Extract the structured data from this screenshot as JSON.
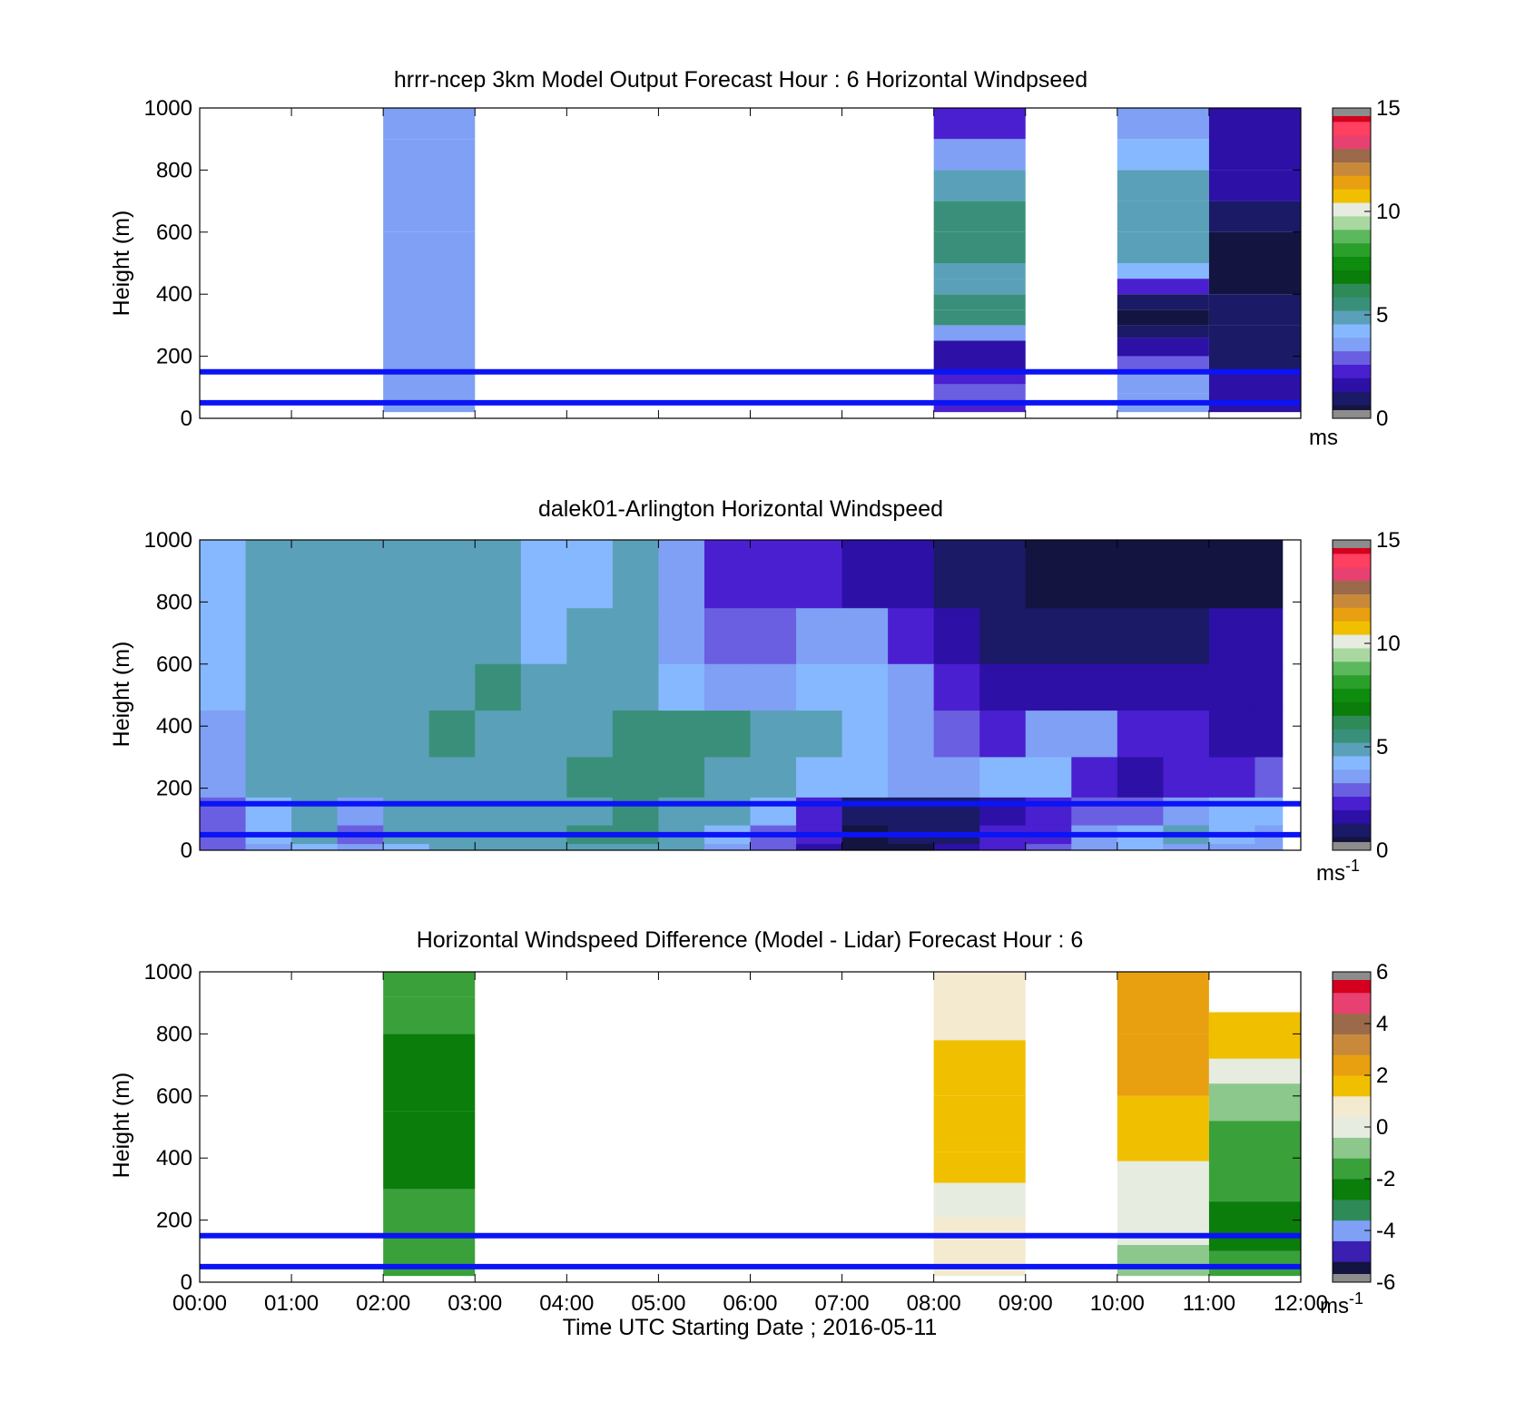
{
  "colors": {
    "background": "#ffffff",
    "reference_line": "#0a14f5",
    "missing": "#8c8c8c",
    "speed_scale": [
      "#141440",
      "#1a1a66",
      "#2d10a6",
      "#4a1fd0",
      "#6a5fe0",
      "#7fa0f5",
      "#86b8ff",
      "#5aa0b8",
      "#3a8f7a",
      "#2e8b57",
      "#0a7d0a",
      "#0d8c0d",
      "#2aa02a",
      "#5cb85c",
      "#a8d8a0",
      "#e6ece0",
      "#f0c000",
      "#e8a010",
      "#c88a3a",
      "#9a6a4a",
      "#e84070",
      "#ff4060",
      "#d4001e"
    ],
    "diff_scale": [
      "#141440",
      "#3a1fb0",
      "#7fa0f5",
      "#2e8b57",
      "#0a7d0a",
      "#3aa03a",
      "#8cc88c",
      "#e6ece0",
      "#f3ead0",
      "#f0c000",
      "#e8a010",
      "#c88a3a",
      "#9a6a4a",
      "#e84070",
      "#d4001e"
    ]
  },
  "xaxis": {
    "label": "Time UTC  Starting Date ; 2016-05-11",
    "ticks": [
      "00:00",
      "01:00",
      "02:00",
      "03:00",
      "04:00",
      "05:00",
      "06:00",
      "07:00",
      "08:00",
      "09:00",
      "10:00",
      "11:00",
      "12:00"
    ]
  },
  "chart_data": [
    {
      "type": "heatmap",
      "id": "model",
      "title": "hrrr-ncep 3km Model Output   Forecast Hour : 6 Horizontal Windpseed",
      "ylabel": "Height (m)",
      "ylim": [
        0,
        1000
      ],
      "yticks": [
        "0",
        "200",
        "400",
        "600",
        "800",
        "1000"
      ],
      "xlim_hours": [
        0,
        12
      ],
      "reference_lines_m": [
        50,
        150
      ],
      "colorbar": {
        "min": 0,
        "max": 15,
        "ticks": [
          "0",
          "5",
          "10",
          "15"
        ],
        "unit": "ms"
      },
      "columns": [
        {
          "start_hour": 2,
          "end_hour": 3,
          "layers": [
            {
              "bottom": 20,
              "top": 600,
              "value": 3.4
            },
            {
              "bottom": 600,
              "top": 900,
              "value": 3.9
            },
            {
              "bottom": 900,
              "top": 1000,
              "value": 3.5
            }
          ]
        },
        {
          "start_hour": 8,
          "end_hour": 9,
          "layers": [
            {
              "bottom": 20,
              "top": 45,
              "value": 2.5
            },
            {
              "bottom": 45,
              "top": 110,
              "value": 2.9
            },
            {
              "bottom": 110,
              "top": 150,
              "value": 2.2
            },
            {
              "bottom": 150,
              "top": 250,
              "value": 1.6
            },
            {
              "bottom": 250,
              "top": 300,
              "value": 3.7
            },
            {
              "bottom": 300,
              "top": 350,
              "value": 5.4
            },
            {
              "bottom": 350,
              "top": 400,
              "value": 5.5
            },
            {
              "bottom": 400,
              "top": 450,
              "value": 5.2
            },
            {
              "bottom": 450,
              "top": 500,
              "value": 5.0
            },
            {
              "bottom": 500,
              "top": 600,
              "value": 5.3
            },
            {
              "bottom": 600,
              "top": 700,
              "value": 5.6
            },
            {
              "bottom": 700,
              "top": 800,
              "value": 4.6
            },
            {
              "bottom": 800,
              "top": 900,
              "value": 3.9
            },
            {
              "bottom": 900,
              "top": 1000,
              "value": 2.5
            }
          ]
        },
        {
          "start_hour": 10,
          "end_hour": 11,
          "layers": [
            {
              "bottom": 20,
              "top": 45,
              "value": 3.4
            },
            {
              "bottom": 45,
              "top": 80,
              "value": 3.9
            },
            {
              "bottom": 80,
              "top": 150,
              "value": 3.8
            },
            {
              "bottom": 150,
              "top": 200,
              "value": 3.2
            },
            {
              "bottom": 200,
              "top": 260,
              "value": 1.6
            },
            {
              "bottom": 260,
              "top": 300,
              "value": 0.7
            },
            {
              "bottom": 300,
              "top": 350,
              "value": 0.4
            },
            {
              "bottom": 350,
              "top": 400,
              "value": 1.2
            },
            {
              "bottom": 400,
              "top": 450,
              "value": 2.4
            },
            {
              "bottom": 450,
              "top": 500,
              "value": 4.3
            },
            {
              "bottom": 500,
              "top": 600,
              "value": 4.6
            },
            {
              "bottom": 600,
              "top": 700,
              "value": 5.0
            },
            {
              "bottom": 700,
              "top": 800,
              "value": 4.6
            },
            {
              "bottom": 800,
              "top": 900,
              "value": 4.3
            },
            {
              "bottom": 900,
              "top": 1000,
              "value": 3.9
            }
          ]
        },
        {
          "start_hour": 11,
          "end_hour": 12,
          "layers": [
            {
              "bottom": 20,
              "top": 150,
              "value": 1.6
            },
            {
              "bottom": 150,
              "top": 300,
              "value": 0.9
            },
            {
              "bottom": 300,
              "top": 400,
              "value": 0.7
            },
            {
              "bottom": 400,
              "top": 600,
              "value": 0.3
            },
            {
              "bottom": 600,
              "top": 700,
              "value": 1.1
            },
            {
              "bottom": 700,
              "top": 800,
              "value": 1.5
            },
            {
              "bottom": 800,
              "top": 1000,
              "value": 1.8
            }
          ]
        }
      ]
    },
    {
      "type": "heatmap",
      "id": "lidar",
      "title": "dalek01-Arlington  Horizontal Windspeed",
      "ylabel": "Height (m)",
      "ylim": [
        0,
        1000
      ],
      "yticks": [
        "0",
        "200",
        "400",
        "600",
        "800",
        "1000"
      ],
      "xlim_hours": [
        0,
        12
      ],
      "reference_lines_m": [
        50,
        150
      ],
      "colorbar": {
        "min": 0,
        "max": 15,
        "ticks": [
          "0",
          "5",
          "10",
          "15"
        ],
        "unit": "ms",
        "unit_exponent": "-1"
      },
      "data_extent_hours": [
        0,
        11.8
      ],
      "height_levels_m": [
        1000,
        780,
        600,
        450,
        300,
        170,
        80,
        20
      ],
      "hour_bins": [
        0,
        0.5,
        1,
        1.5,
        2,
        2.5,
        3,
        3.5,
        4,
        4.5,
        5,
        5.5,
        6,
        6.5,
        7,
        7.5,
        8,
        8.5,
        9,
        9.5,
        10,
        10.5,
        11,
        11.5
      ],
      "speed_profiles": [
        [
          4.5,
          5.0,
          5.0,
          5.0,
          5.0,
          5.0,
          5.2,
          4.5,
          4.0,
          4.6,
          3.6,
          2.6,
          2.6,
          2.3,
          1.8,
          1.6,
          1.1,
          0.8,
          0.6,
          0.5,
          0.3,
          0.3,
          0.3,
          0.4
        ],
        [
          4.0,
          5.0,
          4.8,
          5.1,
          5.0,
          5.2,
          5.0,
          4.0,
          4.8,
          5.0,
          3.8,
          2.8,
          2.9,
          3.6,
          3.8,
          2.6,
          1.5,
          1.0,
          0.8,
          0.8,
          1.2,
          1.0,
          1.6,
          1.5
        ],
        [
          4.5,
          5.0,
          4.9,
          5.0,
          5.1,
          5.2,
          5.3,
          5.0,
          5.0,
          5.2,
          4.4,
          3.6,
          3.7,
          4.0,
          4.0,
          3.6,
          2.0,
          1.5,
          1.6,
          1.6,
          1.6,
          1.6,
          1.9,
          1.8
        ],
        [
          3.8,
          4.8,
          5.0,
          5.0,
          5.1,
          5.4,
          5.2,
          5.0,
          5.2,
          5.4,
          5.4,
          5.3,
          5.0,
          4.6,
          4.3,
          3.7,
          2.8,
          2.5,
          3.6,
          3.9,
          2.6,
          2.2,
          1.8,
          1.5
        ],
        [
          3.4,
          4.6,
          4.8,
          4.6,
          5.0,
          5.2,
          5.1,
          5.2,
          5.4,
          5.6,
          5.8,
          5.0,
          4.7,
          4.4,
          4.2,
          3.7,
          3.7,
          4.2,
          4.3,
          2.2,
          1.5,
          2.0,
          2.4,
          2.8
        ],
        [
          3.2,
          4.4,
          4.6,
          3.8,
          4.8,
          4.9,
          5.0,
          5.1,
          5.2,
          5.4,
          5.2,
          4.8,
          4.4,
          2.5,
          1.2,
          1.2,
          0.9,
          1.6,
          2.2,
          2.8,
          3.2,
          3.6,
          4.2,
          4.4
        ],
        [
          3.0,
          4.0,
          4.6,
          3.2,
          4.7,
          5.0,
          5.1,
          5.0,
          5.3,
          5.4,
          5.0,
          4.0,
          3.2,
          2.0,
          0.6,
          0.7,
          1.2,
          2.1,
          2.4,
          3.4,
          4.2,
          4.6,
          4.2,
          3.9
        ],
        [
          3.2,
          3.6,
          4.0,
          3.6,
          4.4,
          4.7,
          4.6,
          4.8,
          4.7,
          4.9,
          4.6,
          3.8,
          3.0,
          1.6,
          0.4,
          0.6,
          1.4,
          2.6,
          3.0,
          3.6,
          4.0,
          3.8,
          3.6,
          3.4
        ]
      ]
    },
    {
      "type": "heatmap",
      "id": "difference",
      "title": "Horizontal Windspeed Difference (Model - Lidar) Forecast Hour : 6",
      "ylabel": "Height (m)",
      "ylim": [
        0,
        1000
      ],
      "yticks": [
        "0",
        "200",
        "400",
        "600",
        "800",
        "1000"
      ],
      "xlim_hours": [
        0,
        12
      ],
      "reference_lines_m": [
        50,
        150
      ],
      "colorbar": {
        "min": -6,
        "max": 6,
        "ticks": [
          "-6",
          "-4",
          "-2",
          "0",
          "2",
          "4",
          "6"
        ],
        "unit": "ms",
        "unit_exponent": "-1"
      },
      "columns": [
        {
          "start_hour": 2,
          "end_hour": 3,
          "layers": [
            {
              "bottom": 20,
              "top": 300,
              "value": -2.0
            },
            {
              "bottom": 300,
              "top": 550,
              "value": -2.6
            },
            {
              "bottom": 550,
              "top": 800,
              "value": -2.2
            },
            {
              "bottom": 800,
              "top": 920,
              "value": -1.6
            },
            {
              "bottom": 920,
              "top": 1000,
              "value": -1.9
            }
          ]
        },
        {
          "start_hour": 8,
          "end_hour": 9,
          "layers": [
            {
              "bottom": 20,
              "top": 60,
              "value": 1.0
            },
            {
              "bottom": 60,
              "top": 140,
              "value": 0.4
            },
            {
              "bottom": 140,
              "top": 210,
              "value": 0.7
            },
            {
              "bottom": 210,
              "top": 320,
              "value": 0.2
            },
            {
              "bottom": 320,
              "top": 420,
              "value": 1.2
            },
            {
              "bottom": 420,
              "top": 600,
              "value": 1.8
            },
            {
              "bottom": 600,
              "top": 780,
              "value": 1.4
            },
            {
              "bottom": 780,
              "top": 1000,
              "value": 1.0
            }
          ]
        },
        {
          "start_hour": 10,
          "end_hour": 11,
          "layers": [
            {
              "bottom": 20,
              "top": 120,
              "value": -0.8
            },
            {
              "bottom": 120,
              "top": 240,
              "value": -0.2
            },
            {
              "bottom": 240,
              "top": 300,
              "value": -0.1
            },
            {
              "bottom": 300,
              "top": 390,
              "value": 0.3
            },
            {
              "bottom": 390,
              "top": 600,
              "value": 1.8
            },
            {
              "bottom": 600,
              "top": 800,
              "value": 2.1
            },
            {
              "bottom": 800,
              "top": 1000,
              "value": 2.6
            }
          ]
        },
        {
          "start_hour": 11,
          "end_hour": 12,
          "layers": [
            {
              "bottom": 20,
              "top": 100,
              "value": -1.5
            },
            {
              "bottom": 100,
              "top": 260,
              "value": -2.7
            },
            {
              "bottom": 260,
              "top": 520,
              "value": -1.8
            },
            {
              "bottom": 520,
              "top": 640,
              "value": -0.6
            },
            {
              "bottom": 640,
              "top": 720,
              "value": 0.2
            },
            {
              "bottom": 720,
              "top": 870,
              "value": 1.4
            }
          ]
        }
      ]
    }
  ]
}
